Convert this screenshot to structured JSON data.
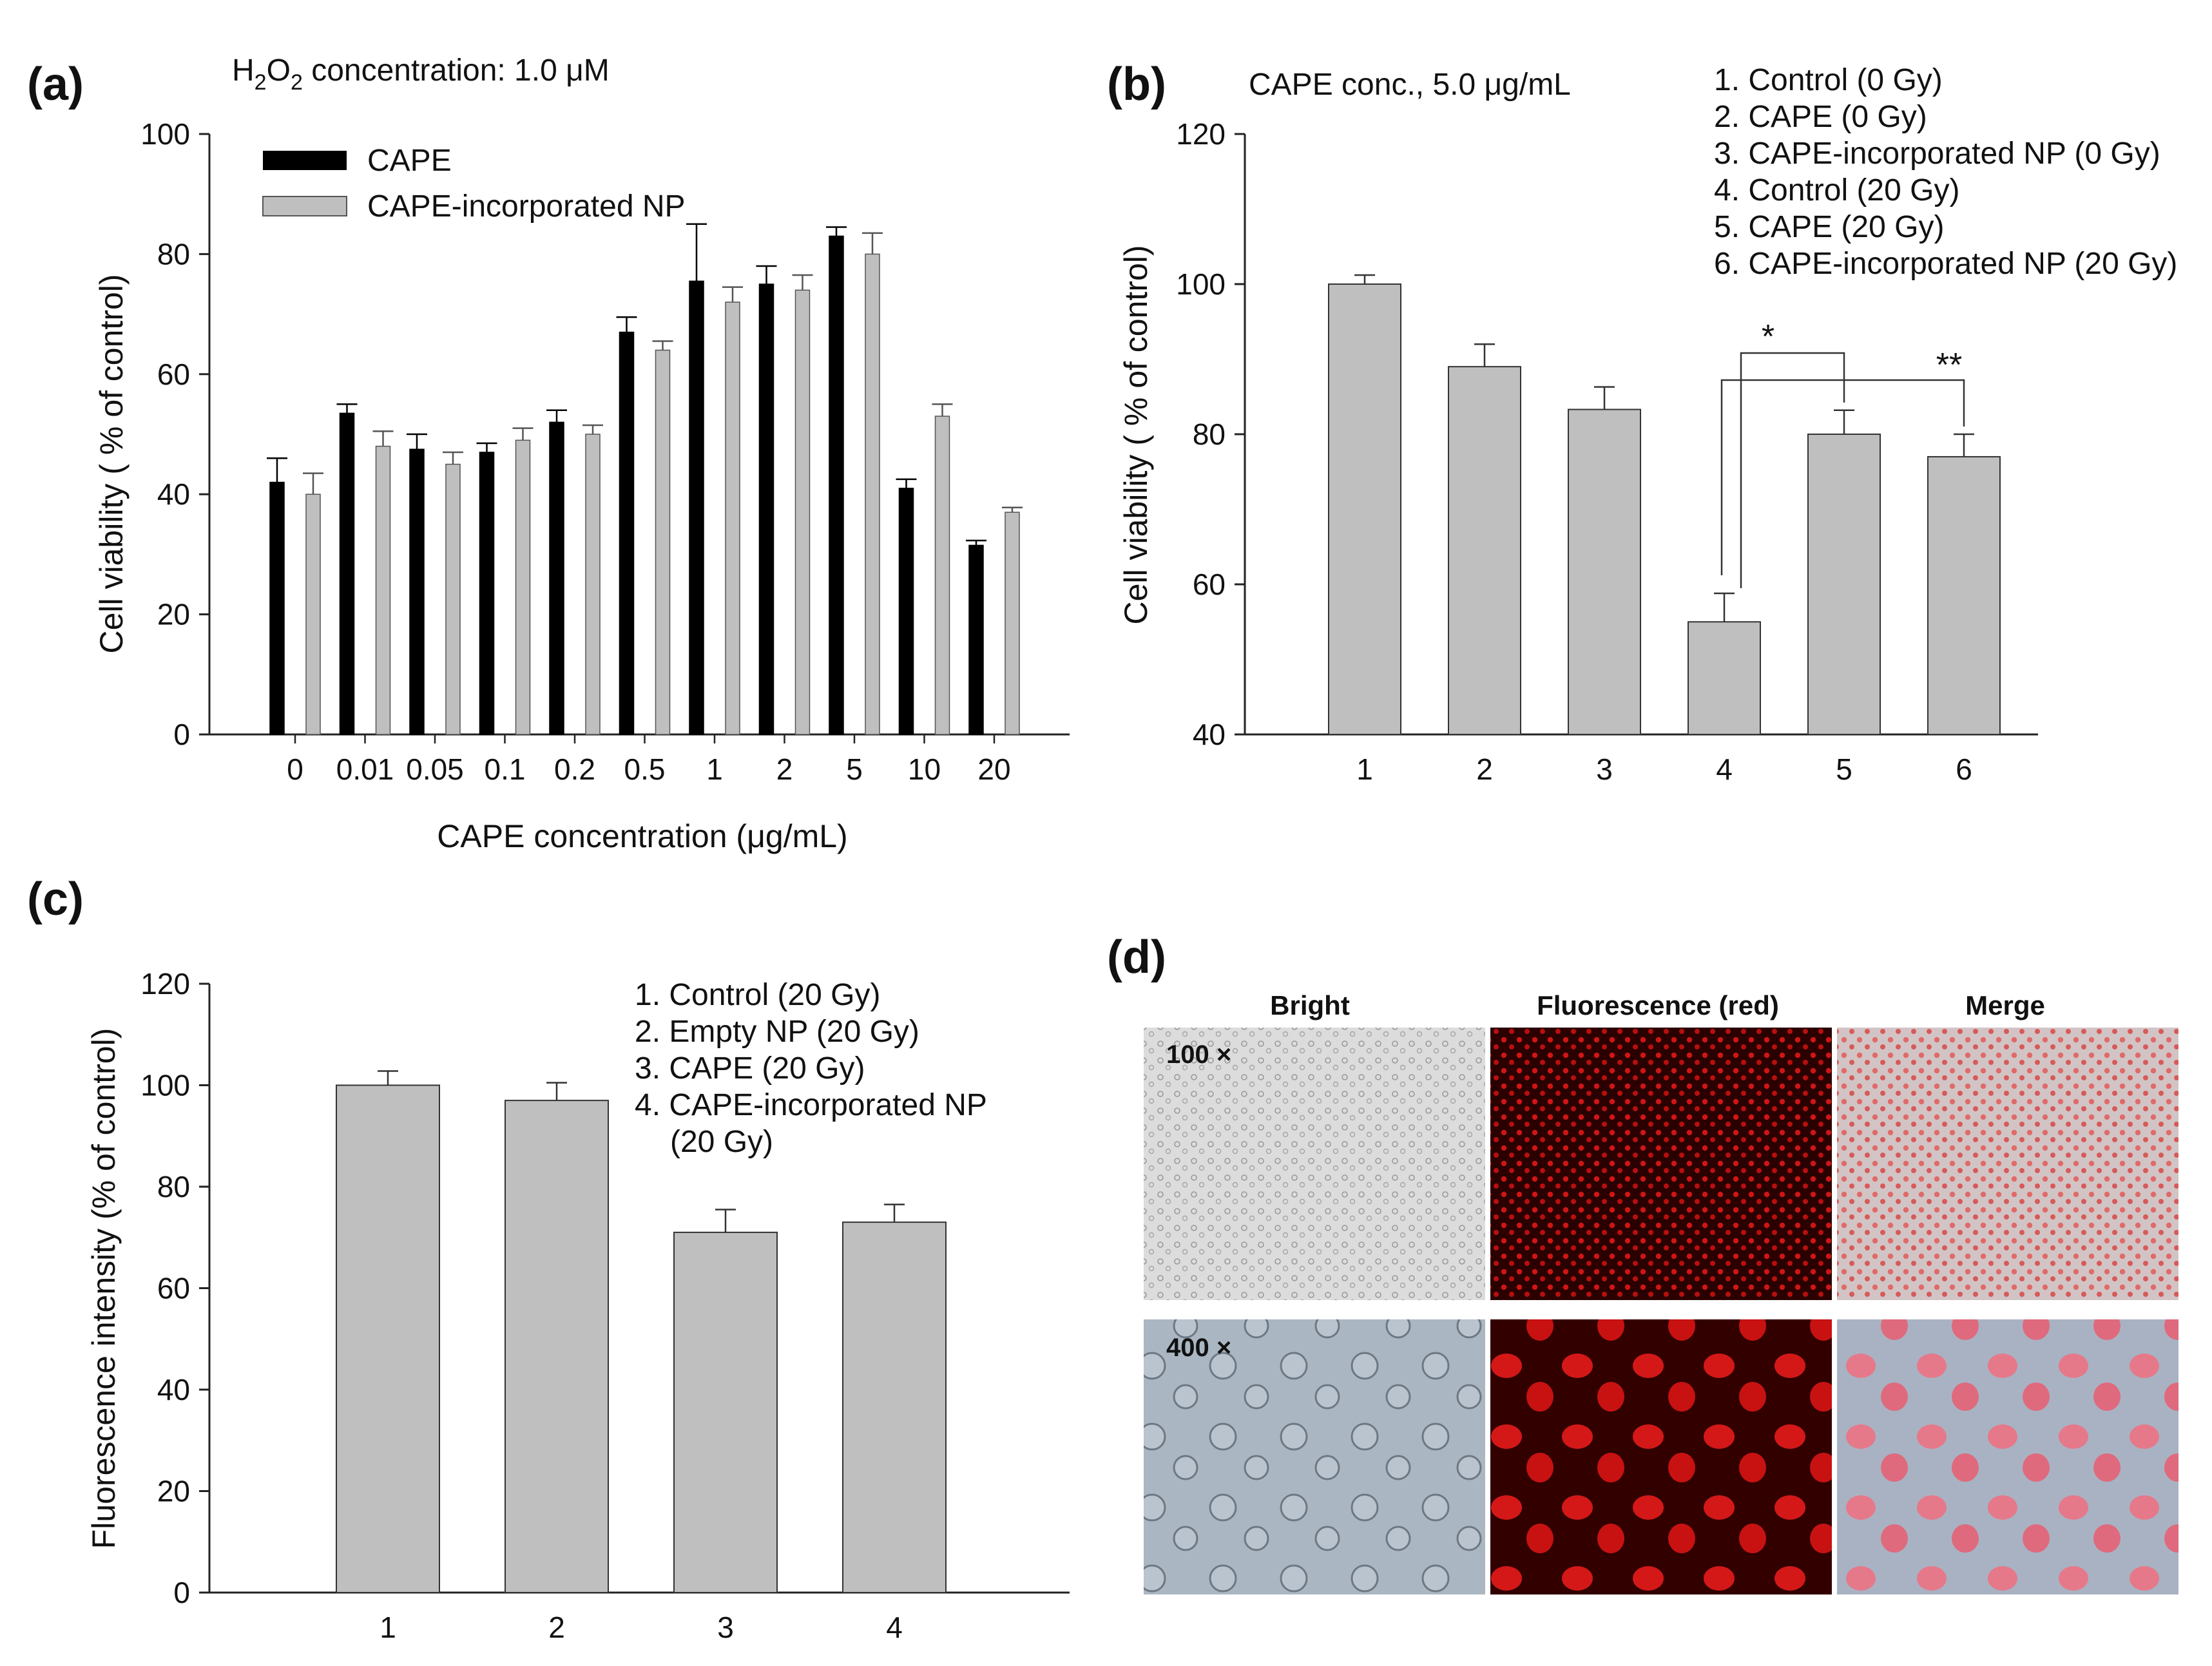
{
  "colors": {
    "cape": "#000000",
    "np": "#bfbfbf",
    "bar": "#bfbfbf",
    "axis": "#222222"
  },
  "chart_data": [
    {
      "id": "a",
      "panel_label": "(a)",
      "type": "bar",
      "title_pre": "H",
      "title_sub1": "2",
      "title_mid": "O",
      "title_sub2": "2",
      "title_post": " concentration:  1.0 μM",
      "xlabel": "CAPE concentration (μg/mL)",
      "ylabel": "Cell viability ( % of control)",
      "ylim": [
        0,
        100
      ],
      "yticks": [
        0,
        20,
        40,
        60,
        80,
        100
      ],
      "categories": [
        "0",
        "0.01",
        "0.05",
        "0.1",
        "0.2",
        "0.5",
        "1",
        "2",
        "5",
        "10",
        "20"
      ],
      "series": [
        {
          "name": "CAPE",
          "color": "#000000",
          "values": [
            42,
            53.5,
            47.5,
            47,
            52,
            67,
            75.5,
            75,
            83,
            41,
            31.5
          ],
          "errors": [
            4,
            1.5,
            2.5,
            1.5,
            2,
            2.5,
            9.5,
            3,
            1.5,
            1.5,
            0.8
          ]
        },
        {
          "name": "CAPE-incorporated NP",
          "color": "#bfbfbf",
          "values": [
            40,
            48,
            45,
            49,
            50,
            64,
            72,
            74,
            80,
            53,
            37
          ],
          "errors": [
            3.5,
            2.5,
            2,
            2,
            1.5,
            1.5,
            2.5,
            2.5,
            3.5,
            2,
            0.8
          ]
        }
      ]
    },
    {
      "id": "b",
      "panel_label": "(b)",
      "type": "bar",
      "title": "CAPE conc., 5.0 μg/mL",
      "xlabel": "",
      "ylabel": "Cell viability ( % of control)",
      "ylim": [
        40,
        120
      ],
      "yticks": [
        40,
        60,
        80,
        100,
        120
      ],
      "categories": [
        "1",
        "2",
        "3",
        "4",
        "5",
        "6"
      ],
      "values": [
        100,
        89,
        83.3,
        55,
        80,
        77
      ],
      "errors": [
        1.2,
        3,
        3,
        3.8,
        3.2,
        3
      ],
      "legend": [
        "1. Control (0 Gy)",
        "2. CAPE (0 Gy)",
        "3. CAPE-incorporated NP (0 Gy)",
        "4. Control (20 Gy)",
        "5. CAPE (20 Gy)",
        "6. CAPE-incorporated NP (20 Gy)"
      ],
      "significance": [
        {
          "from": 4,
          "to": 5,
          "label": "*"
        },
        {
          "from": 4,
          "to": 6,
          "label": "**"
        }
      ]
    },
    {
      "id": "c",
      "panel_label": "(c)",
      "type": "bar",
      "xlabel": "",
      "ylabel": "Fluorescence intensity (% of control)",
      "ylim": [
        0,
        120
      ],
      "yticks": [
        0,
        20,
        40,
        60,
        80,
        100,
        120
      ],
      "categories": [
        "1",
        "2",
        "3",
        "4"
      ],
      "values": [
        100,
        97,
        71,
        73
      ],
      "errors": [
        2.8,
        3.5,
        4.5,
        3.5
      ],
      "legend": [
        "1. Control (20 Gy)",
        "2. Empty NP (20 Gy)",
        "3. CAPE (20 Gy)",
        "4. CAPE-incorporated NP",
        "(20 Gy)"
      ]
    }
  ],
  "micrographs": {
    "panel_label": "(d)",
    "columns": [
      "Bright",
      "Fluorescence (red)",
      "Merge"
    ],
    "rows": [
      "100 ×",
      "400 ×"
    ]
  }
}
